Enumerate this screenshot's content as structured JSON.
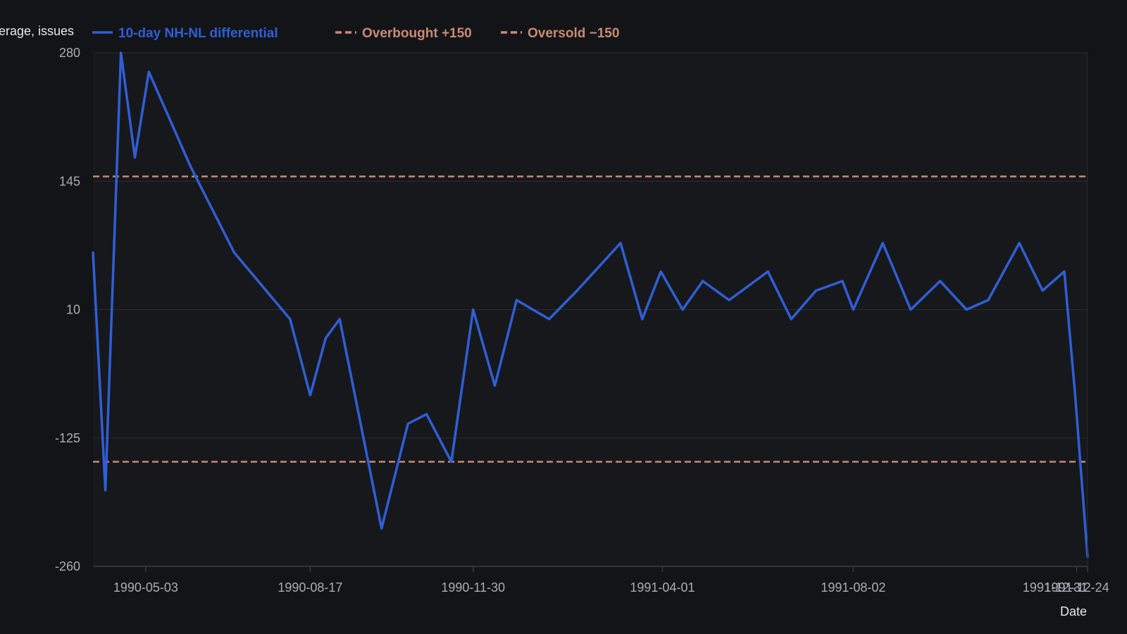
{
  "colors": {
    "background": "#131417",
    "plot_background": "#17181c",
    "grid": "#2a2c31",
    "axis": "#3a3d44",
    "series_line": "#2f5fd6",
    "threshold_line": "#c98a74",
    "tick_text": "#a9adb5",
    "axis_title_text": "#e6e7ea"
  },
  "chart_data": {
    "type": "line",
    "ylabel": "erage, issues",
    "xlabel": "Date",
    "ylim": [
      -260,
      280
    ],
    "yticks": [
      280,
      145,
      10,
      -125,
      -260
    ],
    "xlim": [
      "1990-03-30",
      "1991-12-31"
    ],
    "xticks": [
      "1990-05-03",
      "1990-08-17",
      "1990-11-30",
      "1991-04-01",
      "1991-08-02",
      "1991-12-24",
      "1991-12-31"
    ],
    "grid": true,
    "legend_position": "top",
    "legend": [
      {
        "label": "10-day NH-NL differential",
        "style": "solid",
        "color": "#2f5fd6"
      },
      {
        "label": "Overbought +150",
        "style": "dashed",
        "color": "#c98a74"
      },
      {
        "label": "Oversold −150",
        "style": "dashed",
        "color": "#c98a74"
      }
    ],
    "thresholds": [
      {
        "name": "Overbought +150",
        "value": 150
      },
      {
        "name": "Oversold −150",
        "value": -150
      }
    ],
    "series": [
      {
        "name": "10-day NH-NL differential",
        "x": [
          "1990-03-30",
          "1990-04-07",
          "1990-04-17",
          "1990-04-26",
          "1990-05-05",
          "1990-06-01",
          "1990-06-29",
          "1990-08-04",
          "1990-08-17",
          "1990-08-27",
          "1990-09-05",
          "1990-10-02",
          "1990-10-19",
          "1990-10-31",
          "1990-11-16",
          "1990-11-30",
          "1990-12-14",
          "1990-12-28",
          "1991-01-18",
          "1991-02-05",
          "1991-03-05",
          "1991-03-19",
          "1991-03-31",
          "1991-04-14",
          "1991-04-27",
          "1991-05-14",
          "1991-06-08",
          "1991-06-23",
          "1991-07-09",
          "1991-07-26",
          "1991-08-02",
          "1991-08-21",
          "1991-09-08",
          "1991-09-27",
          "1991-10-14",
          "1991-10-28",
          "1991-11-17",
          "1991-12-02",
          "1991-12-16",
          "1991-12-23",
          "1991-12-31"
        ],
        "values": [
          70,
          -180,
          280,
          170,
          260,
          160,
          70,
          0,
          -80,
          -20,
          0,
          -220,
          -110,
          -100,
          -150,
          10,
          -70,
          20,
          0,
          30,
          80,
          0,
          50,
          10,
          40,
          20,
          50,
          0,
          30,
          40,
          10,
          80,
          10,
          40,
          10,
          20,
          80,
          30,
          50,
          -80,
          -250
        ]
      }
    ]
  }
}
